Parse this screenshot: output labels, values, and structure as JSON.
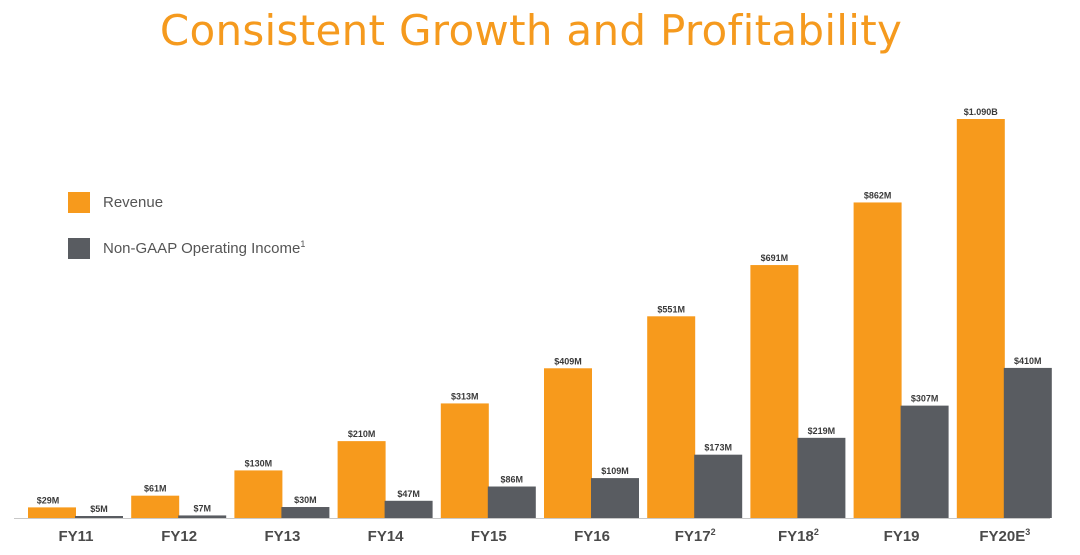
{
  "page": {
    "title": "Consistent Growth and Profitability"
  },
  "colors": {
    "revenue": "#f79a1c",
    "income": "#595c61",
    "axis": "#c8c8c8"
  },
  "chart_data": {
    "type": "bar",
    "title": "Consistent Growth and Profitability",
    "xlabel": "",
    "ylabel": "",
    "ylim": [
      0,
      1100
    ],
    "grid": false,
    "legend_position": "left",
    "categories": [
      {
        "label": "FY11",
        "sup": ""
      },
      {
        "label": "FY12",
        "sup": ""
      },
      {
        "label": "FY13",
        "sup": ""
      },
      {
        "label": "FY14",
        "sup": ""
      },
      {
        "label": "FY15",
        "sup": ""
      },
      {
        "label": "FY16",
        "sup": ""
      },
      {
        "label": "FY17",
        "sup": "2"
      },
      {
        "label": "FY18",
        "sup": "2"
      },
      {
        "label": "FY19",
        "sup": ""
      },
      {
        "label": "FY20E",
        "sup": "3"
      }
    ],
    "series": [
      {
        "name": "Revenue",
        "sup": "",
        "values": [
          29,
          61,
          130,
          210,
          313,
          409,
          551,
          691,
          862,
          1090
        ],
        "labels": [
          "$29M",
          "$61M",
          "$130M",
          "$210M",
          "$313M",
          "$409M",
          "$551M",
          "$691M",
          "$862M",
          "$1.090B"
        ]
      },
      {
        "name": "Non-GAAP Operating Income",
        "sup": "1",
        "values": [
          5,
          7,
          30,
          47,
          86,
          109,
          173,
          219,
          307,
          410
        ],
        "labels": [
          "$5M",
          "$7M",
          "$30M",
          "$47M",
          "$86M",
          "$109M",
          "$173M",
          "$219M",
          "$307M",
          "$410M"
        ]
      }
    ]
  }
}
